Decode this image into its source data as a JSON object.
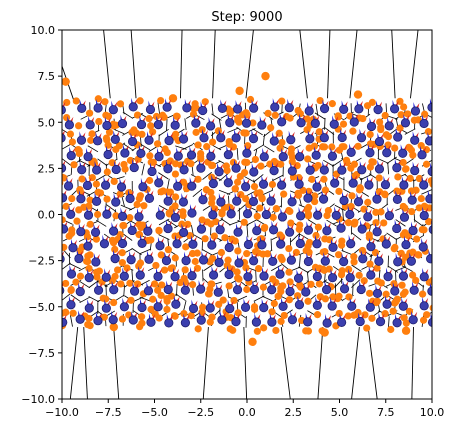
{
  "chart_data": {
    "type": "scatter",
    "title": "Step: 9000",
    "xlabel": "",
    "ylabel": "",
    "xlim": [
      -10,
      10
    ],
    "ylim": [
      -10,
      10
    ],
    "xticks": [
      -10.0,
      -7.5,
      -5.0,
      -2.5,
      0.0,
      2.5,
      5.0,
      7.5,
      10.0
    ],
    "yticks": [
      -10.0,
      -7.5,
      -5.0,
      -2.5,
      0.0,
      2.5,
      5.0,
      7.5,
      10.0
    ],
    "xtick_labels": [
      "−10.0",
      "−7.5",
      "−5.0",
      "−2.5",
      "0.0",
      "2.5",
      "5.0",
      "7.5",
      "10.0"
    ],
    "ytick_labels": [
      "−10.0",
      "−7.5",
      "−5.0",
      "−2.5",
      "0.0",
      "2.5",
      "5.0",
      "7.5",
      "10.0"
    ],
    "grid": false,
    "lattice": {
      "x_range": [
        -10,
        10
      ],
      "y_range": [
        -5.8,
        6.0
      ],
      "spacing": 0.95,
      "row_shift": 0.475
    },
    "outliers": [
      {
        "x": -9.8,
        "y": 7.2
      },
      {
        "x": 1.0,
        "y": 7.5
      },
      {
        "x": -0.4,
        "y": 6.7
      },
      {
        "x": -4.0,
        "y": 6.3
      },
      {
        "x": 6.0,
        "y": 6.5
      },
      {
        "x": 0.3,
        "y": -6.9
      },
      {
        "x": -7.2,
        "y": -6.1
      },
      {
        "x": 4.2,
        "y": -6.4
      },
      {
        "x": 8.6,
        "y": -6.3
      },
      {
        "x": -10.0,
        "y": -6.0
      }
    ],
    "colors": {
      "point_fill": "#3b3fae",
      "point_edge": "#1f1f6e",
      "orange": "#ff7f0e",
      "red": "#d62728",
      "blue_arrow": "#1f1fd6",
      "lines": "#000000",
      "axes": "#000000"
    }
  }
}
